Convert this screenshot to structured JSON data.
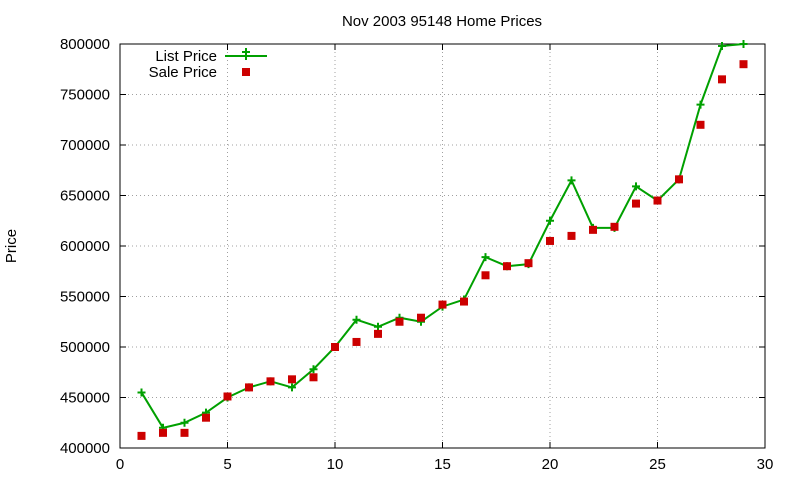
{
  "chart_data": {
    "type": "line",
    "title": "Nov 2003 95148 Home Prices",
    "xlabel": "",
    "ylabel": "Price",
    "xlim": [
      0,
      30
    ],
    "ylim": [
      400000,
      800000
    ],
    "x_ticks": [
      0,
      5,
      10,
      15,
      20,
      25,
      30
    ],
    "y_ticks": [
      400000,
      450000,
      500000,
      550000,
      600000,
      650000,
      700000,
      750000,
      800000
    ],
    "grid": true,
    "legend_position": "top-left",
    "series": [
      {
        "name": "List Price",
        "style": "line-with-plus-markers",
        "color": "#00a000",
        "x": [
          1,
          2,
          3,
          4,
          5,
          6,
          7,
          8,
          9,
          10,
          11,
          12,
          13,
          14,
          15,
          16,
          17,
          18,
          19,
          20,
          21,
          22,
          23,
          24,
          25,
          26,
          27,
          28,
          29
        ],
        "y": [
          455000,
          420000,
          425000,
          435000,
          450000,
          460000,
          466000,
          460000,
          478000,
          500000,
          527000,
          520000,
          529000,
          525000,
          540000,
          547000,
          589000,
          580000,
          582000,
          625000,
          665000,
          618000,
          618000,
          659000,
          645000,
          666000,
          740000,
          798000,
          800000
        ]
      },
      {
        "name": "Sale Price",
        "style": "square-markers",
        "color": "#cc0000",
        "x": [
          1,
          2,
          3,
          4,
          5,
          6,
          7,
          8,
          9,
          10,
          11,
          12,
          13,
          14,
          15,
          16,
          17,
          18,
          19,
          20,
          21,
          22,
          23,
          24,
          25,
          26,
          27,
          28,
          29
        ],
        "y": [
          412000,
          415000,
          415000,
          430000,
          451000,
          460000,
          466000,
          468000,
          470000,
          500000,
          505000,
          513000,
          525000,
          529000,
          542000,
          545000,
          571000,
          580000,
          583000,
          605000,
          610000,
          616000,
          619000,
          642000,
          645000,
          666000,
          720000,
          765000,
          780000
        ]
      }
    ]
  }
}
